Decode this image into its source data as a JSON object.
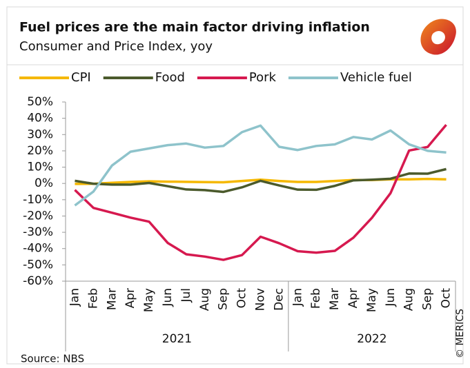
{
  "chart_data": {
    "type": "line",
    "title": "Fuel prices are the main factor driving inflation",
    "subtitle": "Consumer and Price Index, yoy",
    "source": "Source: NBS",
    "credit": "© MERICS",
    "groups": [
      {
        "label": "2021",
        "categories": [
          "Jan",
          "Feb",
          "Mar",
          "Apr",
          "May",
          "Jun",
          "Jul",
          "Aug",
          "Sep",
          "Oct",
          "Nov",
          "Dec"
        ]
      },
      {
        "label": "2022",
        "categories": [
          "Jan",
          "Feb",
          "Mar",
          "Apr",
          "May",
          "Jun",
          "Aug",
          "Sep",
          "Oct"
        ]
      }
    ],
    "series": [
      {
        "name": "CPI",
        "color": "#f5b800",
        "values": [
          -0.3,
          -0.2,
          0.4,
          0.9,
          1.3,
          1.1,
          1.0,
          0.8,
          0.7,
          1.5,
          2.3,
          1.5,
          0.9,
          0.9,
          1.5,
          2.1,
          2.1,
          2.5,
          2.5,
          2.8,
          2.5
        ]
      },
      {
        "name": "Food",
        "color": "#4b5a2c",
        "values": [
          1.6,
          -0.2,
          -0.7,
          -0.7,
          0.3,
          -1.7,
          -3.7,
          -4.1,
          -5.2,
          -2.4,
          1.6,
          -1.2,
          -3.8,
          -3.9,
          -1.5,
          1.9,
          2.3,
          2.9,
          6.1,
          6.0,
          8.8
        ]
      },
      {
        "name": "Pork",
        "color": "#d6194f",
        "values": [
          -4,
          -15,
          -18,
          -21,
          -23.5,
          -36.5,
          -43.5,
          -44.9,
          -46.9,
          -44,
          -32.7,
          -36.7,
          -41.6,
          -42.5,
          -41.4,
          -33.3,
          -21.1,
          -6,
          20.2,
          22.4,
          36
        ]
      },
      {
        "name": "Vehicle fuel",
        "color": "#8ec3cb",
        "values": [
          -13.5,
          -5,
          11,
          19.5,
          21.5,
          23.5,
          24.5,
          22,
          23,
          31.5,
          35.5,
          22.5,
          20.5,
          23,
          24,
          28.5,
          27,
          32.5,
          24,
          20,
          19
        ]
      }
    ],
    "ylim": [
      -60,
      50
    ],
    "yticks": [
      {
        "value": -60,
        "label": "-60%"
      },
      {
        "value": -50,
        "label": "-50%"
      },
      {
        "value": -40,
        "label": "-40%"
      },
      {
        "value": -30,
        "label": "-30%"
      },
      {
        "value": -20,
        "label": "-20%"
      },
      {
        "value": -10,
        "label": "-10%"
      },
      {
        "value": 0,
        "label": "0%"
      },
      {
        "value": 10,
        "label": "10%"
      },
      {
        "value": 20,
        "label": "20%"
      },
      {
        "value": 30,
        "label": "30%"
      },
      {
        "value": 40,
        "label": "40%"
      },
      {
        "value": 50,
        "label": "50%"
      }
    ],
    "grid": false,
    "legend": "top"
  }
}
